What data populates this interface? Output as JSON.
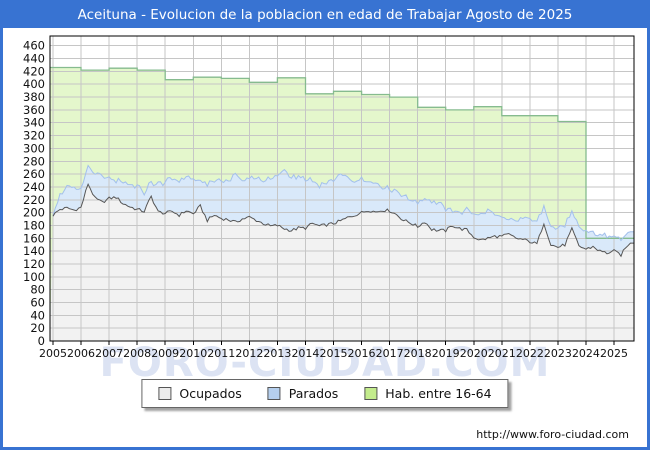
{
  "title": "Aceituna - Evolucion de la poblacion en edad de Trabajar Agosto de 2025",
  "watermark": "FORO-CIUDAD.COM",
  "footer_url": "http://www.foro-ciudad.com",
  "colors": {
    "frame_blue": "#3873d2",
    "grid": "#c6c6c6",
    "plot_border": "#000000",
    "hab_fill": "#e4f7cc",
    "hab_stroke": "#86bb8f",
    "parados_fill": "#d9e9fa",
    "parados_stroke": "#a3c0ec",
    "ocupados_fill": "#f2f2f2",
    "ocupados_stroke": "#555555",
    "axis_text": "#111111"
  },
  "legend": {
    "items": [
      {
        "label": "Ocupados",
        "swatch": "#ececec"
      },
      {
        "label": "Parados",
        "swatch": "#b5cfee"
      },
      {
        "label": "Hab. entre 16-64",
        "swatch": "#c3ec8c"
      }
    ]
  },
  "chart_data": {
    "type": "area",
    "title": "Aceituna - Evolucion de la poblacion en edad de Trabajar Agosto de 2025",
    "xlabel": "",
    "ylabel": "",
    "ylim": [
      0,
      474
    ],
    "x_start": 2005.0,
    "x_end": 2025.67,
    "grid": true,
    "legend_position": "bottom",
    "x_ticks": [
      2005,
      2006,
      2007,
      2008,
      2009,
      2010,
      2011,
      2012,
      2013,
      2014,
      2015,
      2016,
      2017,
      2018,
      2019,
      2020,
      2021,
      2022,
      2023,
      2024,
      2025
    ],
    "y_ticks": [
      0,
      20,
      40,
      60,
      80,
      100,
      120,
      140,
      160,
      180,
      200,
      220,
      240,
      260,
      280,
      300,
      320,
      340,
      360,
      380,
      400,
      420,
      440,
      460
    ],
    "series": [
      {
        "name": "Hab. entre 16-64",
        "type": "step-yearly",
        "years": [
          2005,
          2006,
          2007,
          2008,
          2009,
          2010,
          2011,
          2012,
          2013,
          2014,
          2015,
          2016,
          2017,
          2018,
          2019,
          2020,
          2021,
          2022,
          2023,
          2024,
          2025
        ],
        "values": [
          426,
          422,
          425,
          422,
          407,
          411,
          409,
          403,
          410,
          385,
          389,
          384,
          380,
          364,
          360,
          365,
          351,
          351,
          342,
          160,
          160
        ]
      },
      {
        "name": "Ocupados",
        "type": "quarterly",
        "start": "2005-Q1",
        "values": [
          196,
          205,
          207,
          204,
          208,
          245,
          222,
          216,
          222,
          224,
          214,
          209,
          205,
          202,
          225,
          201,
          199,
          202,
          196,
          203,
          198,
          210,
          188,
          196,
          191,
          189,
          185,
          190,
          193,
          188,
          183,
          179,
          180,
          175,
          172,
          176,
          176,
          183,
          179,
          181,
          183,
          187,
          192,
          196,
          200,
          204,
          201,
          204,
          203,
          197,
          188,
          184,
          178,
          186,
          174,
          172,
          172,
          180,
          175,
          173,
          162,
          157,
          160,
          163,
          163,
          166,
          160,
          158,
          155,
          151,
          184,
          150,
          146,
          150,
          174,
          148,
          143,
          147,
          140,
          137,
          140,
          134,
          150,
          154
        ]
      },
      {
        "name": "Parados",
        "type": "quarterly",
        "start": "2005-Q1",
        "stacked_on": "Ocupados",
        "values": [
          2,
          23,
          33,
          33,
          27,
          28,
          38,
          39,
          30,
          26,
          32,
          34,
          36,
          28,
          23,
          43,
          49,
          50,
          54,
          53,
          56,
          40,
          54,
          52,
          61,
          61,
          72,
          61,
          60,
          67,
          67,
          74,
          78,
          91,
          82,
          80,
          77,
          67,
          61,
          67,
          69,
          73,
          61,
          54,
          53,
          46,
          45,
          37,
          35,
          35,
          36,
          36,
          39,
          36,
          42,
          46,
          33,
          23,
          25,
          31,
          38,
          40,
          42,
          35,
          29,
          24,
          28,
          32,
          35,
          35,
          26,
          27,
          30,
          30,
          26,
          30,
          29,
          21,
          26,
          26,
          22,
          24,
          18,
          14
        ]
      }
    ]
  }
}
